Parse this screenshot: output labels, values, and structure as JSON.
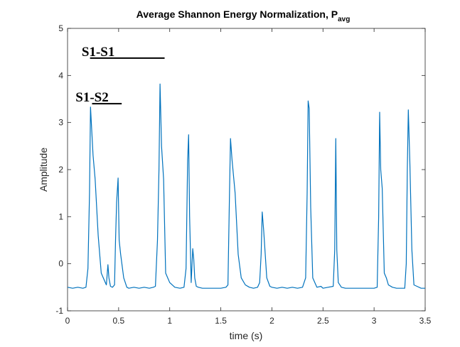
{
  "chart_data": {
    "type": "line",
    "title": "Average Shannon Energy Normalization, P",
    "title_subscript": "avg",
    "xlabel": "time (s)",
    "ylabel": "Amplitude",
    "xlim": [
      0,
      3.5
    ],
    "ylim": [
      -1,
      5
    ],
    "x_ticks": [
      0,
      0.5,
      1,
      1.5,
      2,
      2.5,
      3,
      3.5
    ],
    "x_tick_labels": [
      "0",
      "0.5",
      "1",
      "1.5",
      "2",
      "2.5",
      "3",
      "3.5"
    ],
    "y_ticks": [
      -1,
      0,
      1,
      2,
      3,
      4,
      5
    ],
    "y_tick_labels": [
      "-1",
      "0",
      "1",
      "2",
      "3",
      "4",
      "5"
    ],
    "grid": false,
    "line_color": "#0072BD",
    "annotations": [
      {
        "text": "S1-S1",
        "x": 0.3,
        "y": 4.52
      },
      {
        "text": "S1-S2",
        "x": 0.24,
        "y": 3.55
      }
    ],
    "series": [
      {
        "x": [
          0,
          0.05,
          0.1,
          0.15,
          0.18,
          0.2,
          0.215,
          0.225,
          0.235,
          0.25,
          0.27,
          0.3,
          0.33,
          0.36,
          0.38,
          0.395,
          0.405,
          0.42,
          0.44,
          0.46,
          0.47,
          0.48,
          0.495,
          0.505,
          0.52,
          0.55,
          0.58,
          0.6,
          0.65,
          0.7,
          0.75,
          0.8,
          0.84,
          0.86,
          0.88,
          0.895,
          0.905,
          0.92,
          0.94,
          0.96,
          1.0,
          1.05,
          1.1,
          1.14,
          1.16,
          1.175,
          1.185,
          1.195,
          1.21,
          1.225,
          1.235,
          1.245,
          1.26,
          1.28,
          1.32,
          1.4,
          1.5,
          1.55,
          1.57,
          1.585,
          1.595,
          1.61,
          1.64,
          1.67,
          1.7,
          1.74,
          1.78,
          1.82,
          1.86,
          1.88,
          1.895,
          1.905,
          1.92,
          1.95,
          1.98,
          2.0,
          2.05,
          2.1,
          2.15,
          2.2,
          2.25,
          2.3,
          2.33,
          2.345,
          2.355,
          2.365,
          2.38,
          2.4,
          2.44,
          2.48,
          2.5,
          2.55,
          2.6,
          2.615,
          2.625,
          2.635,
          2.65,
          2.68,
          2.72,
          2.8,
          2.9,
          3.0,
          3.03,
          3.045,
          3.055,
          3.065,
          3.08,
          3.1,
          3.12,
          3.14,
          3.18,
          3.22,
          3.26,
          3.3,
          3.315,
          3.325,
          3.335,
          3.35,
          3.37,
          3.39,
          3.42,
          3.46,
          3.5
        ],
        "y": [
          -0.5,
          -0.52,
          -0.5,
          -0.52,
          -0.5,
          -0.1,
          1.5,
          3.33,
          2.9,
          2.3,
          1.8,
          0.6,
          -0.2,
          -0.35,
          -0.45,
          -0.02,
          -0.3,
          -0.48,
          -0.5,
          -0.45,
          0.5,
          1.3,
          1.82,
          0.5,
          0.2,
          -0.3,
          -0.5,
          -0.52,
          -0.5,
          -0.52,
          -0.5,
          -0.52,
          -0.5,
          -0.48,
          0.5,
          2.0,
          3.82,
          2.5,
          1.8,
          -0.2,
          -0.4,
          -0.5,
          -0.52,
          -0.5,
          -0.1,
          2.2,
          2.74,
          1.0,
          -0.4,
          0.32,
          0.1,
          -0.3,
          -0.48,
          -0.5,
          -0.52,
          -0.52,
          -0.52,
          -0.5,
          -0.45,
          1.5,
          2.66,
          2.2,
          1.5,
          0.2,
          -0.3,
          -0.45,
          -0.5,
          -0.52,
          -0.5,
          -0.4,
          0.2,
          1.1,
          0.7,
          -0.3,
          -0.48,
          -0.5,
          -0.52,
          -0.5,
          -0.52,
          -0.5,
          -0.52,
          -0.5,
          -0.3,
          1.5,
          3.46,
          3.3,
          1.2,
          -0.3,
          -0.5,
          -0.48,
          -0.52,
          -0.5,
          -0.48,
          0.3,
          2.66,
          0.3,
          -0.4,
          -0.5,
          -0.52,
          -0.52,
          -0.52,
          -0.52,
          -0.5,
          1.0,
          3.22,
          2.0,
          1.6,
          -0.2,
          -0.3,
          -0.45,
          -0.5,
          -0.52,
          -0.52,
          -0.52,
          0.0,
          2.0,
          3.27,
          2.2,
          0.3,
          -0.45,
          -0.48,
          -0.52,
          -0.52
        ]
      }
    ]
  }
}
